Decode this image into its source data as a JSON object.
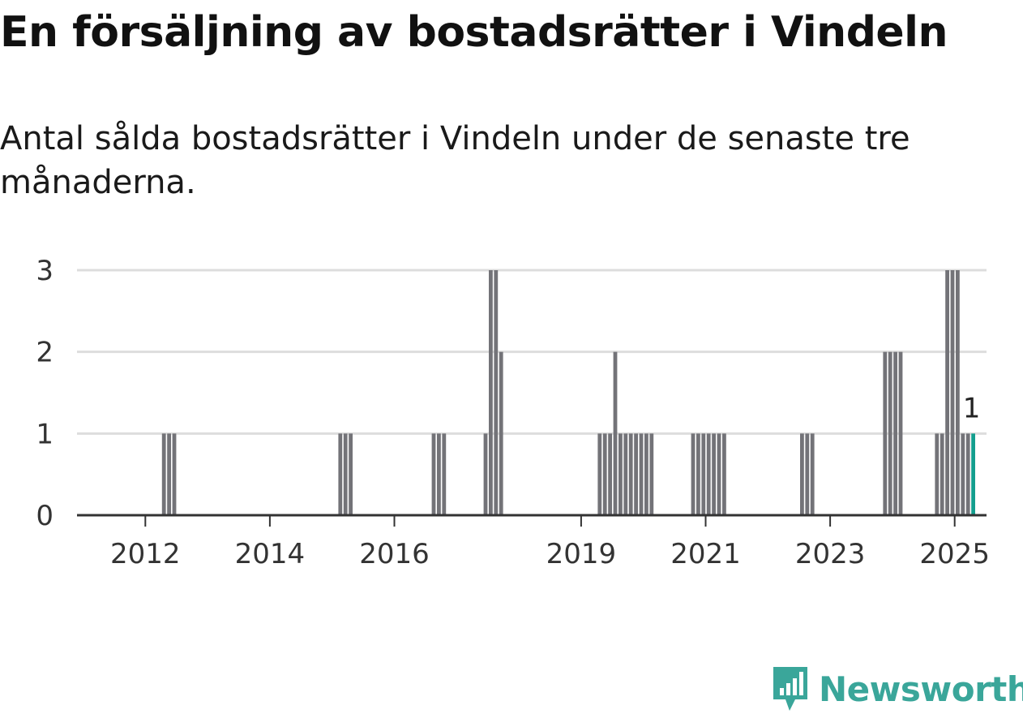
{
  "title": "En försäljning av bostadsrätter i Vindeln",
  "subtitle": "Antal sålda bostadsrätter i Vindeln under de senaste tre månaderna.",
  "brand": {
    "name": "Newsworthy",
    "icon": "newsworthy-logo-icon"
  },
  "colors": {
    "bar": "#737378",
    "highlight": "#139e8e",
    "grid": "#dddddd",
    "axis": "#333333",
    "brand": "#3aa69a"
  },
  "chart_data": {
    "type": "bar",
    "xlabel": "",
    "ylabel": "",
    "ylim": [
      0,
      3
    ],
    "yticks": [
      "0",
      "1",
      "2",
      "3"
    ],
    "xticks": [
      "2012",
      "2014",
      "2016",
      "2019",
      "2021",
      "2023",
      "2025"
    ],
    "grid": true,
    "highlight_label": "1",
    "series": [
      {
        "dates": [
          "2012-04",
          "2012-05",
          "2012-06",
          "2015-02",
          "2015-03",
          "2015-04",
          "2016-08",
          "2016-09",
          "2016-10",
          "2017-06",
          "2017-07",
          "2017-08",
          "2017-09",
          "2019-04",
          "2019-05",
          "2019-06",
          "2019-07",
          "2019-08",
          "2019-09",
          "2019-10",
          "2019-11",
          "2019-12",
          "2020-01",
          "2020-02",
          "2020-10",
          "2020-11",
          "2020-12",
          "2021-01",
          "2021-02",
          "2021-03",
          "2021-04",
          "2022-07",
          "2022-08",
          "2022-09",
          "2023-11",
          "2023-12",
          "2024-01",
          "2024-02",
          "2024-09",
          "2024-10",
          "2024-11",
          "2024-12",
          "2025-01",
          "2025-02",
          "2025-03",
          "2025-04"
        ],
        "values": [
          1,
          1,
          1,
          1,
          1,
          1,
          1,
          1,
          1,
          1,
          3,
          3,
          2,
          1,
          1,
          1,
          2,
          1,
          1,
          1,
          1,
          1,
          1,
          1,
          1,
          1,
          1,
          1,
          1,
          1,
          1,
          1,
          1,
          1,
          2,
          2,
          2,
          2,
          1,
          1,
          3,
          3,
          3,
          1,
          1,
          1
        ]
      }
    ],
    "highlight_date": "2025-04"
  }
}
